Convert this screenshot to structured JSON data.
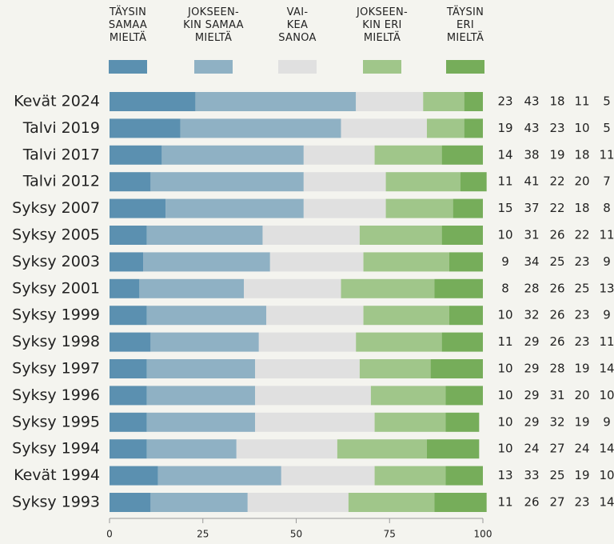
{
  "chart_data": {
    "type": "stacked-bar-horizontal",
    "categories": [
      "Kevät 2024",
      "Talvi 2019",
      "Talvi 2017",
      "Talvi 2012",
      "Syksy 2007",
      "Syksy 2005",
      "Syksy 2003",
      "Syksy 2001",
      "Syksy 1999",
      "Syksy 1998",
      "Syksy 1997",
      "Syksy 1996",
      "Syksy 1995",
      "Syksy 1994",
      "Kevät 1994",
      "Syksy 1993"
    ],
    "series": [
      {
        "name": "TÄYSIN\nSAMAA\nMIELTÄ",
        "color": "#5b90b0",
        "values": [
          23,
          19,
          14,
          11,
          15,
          10,
          9,
          8,
          10,
          11,
          10,
          10,
          10,
          10,
          13,
          11
        ]
      },
      {
        "name": "JOKSEEN-\nKIN SAMAA\nMIELTÄ",
        "color": "#8fb1c4",
        "values": [
          43,
          43,
          38,
          41,
          37,
          31,
          34,
          28,
          32,
          29,
          29,
          29,
          29,
          24,
          33,
          26
        ]
      },
      {
        "name": "VAI-\nKEA\nSANOA",
        "color": "#e0e0e0",
        "values": [
          18,
          23,
          19,
          22,
          22,
          26,
          25,
          26,
          26,
          26,
          28,
          31,
          32,
          27,
          25,
          27
        ]
      },
      {
        "name": "JOKSEEN-\nKIN ERI\nMIELTÄ",
        "color": "#a0c68a",
        "values": [
          11,
          10,
          18,
          20,
          18,
          22,
          23,
          25,
          23,
          23,
          19,
          20,
          19,
          24,
          19,
          23
        ]
      },
      {
        "name": "TÄYSIN\nERI\nMIELTÄ",
        "color": "#76ad5a",
        "values": [
          5,
          5,
          11,
          7,
          8,
          11,
          9,
          13,
          9,
          11,
          14,
          10,
          9,
          14,
          10,
          14
        ]
      }
    ],
    "xlim": [
      0,
      100
    ],
    "xticks": [
      0,
      25,
      50,
      75,
      100
    ]
  }
}
